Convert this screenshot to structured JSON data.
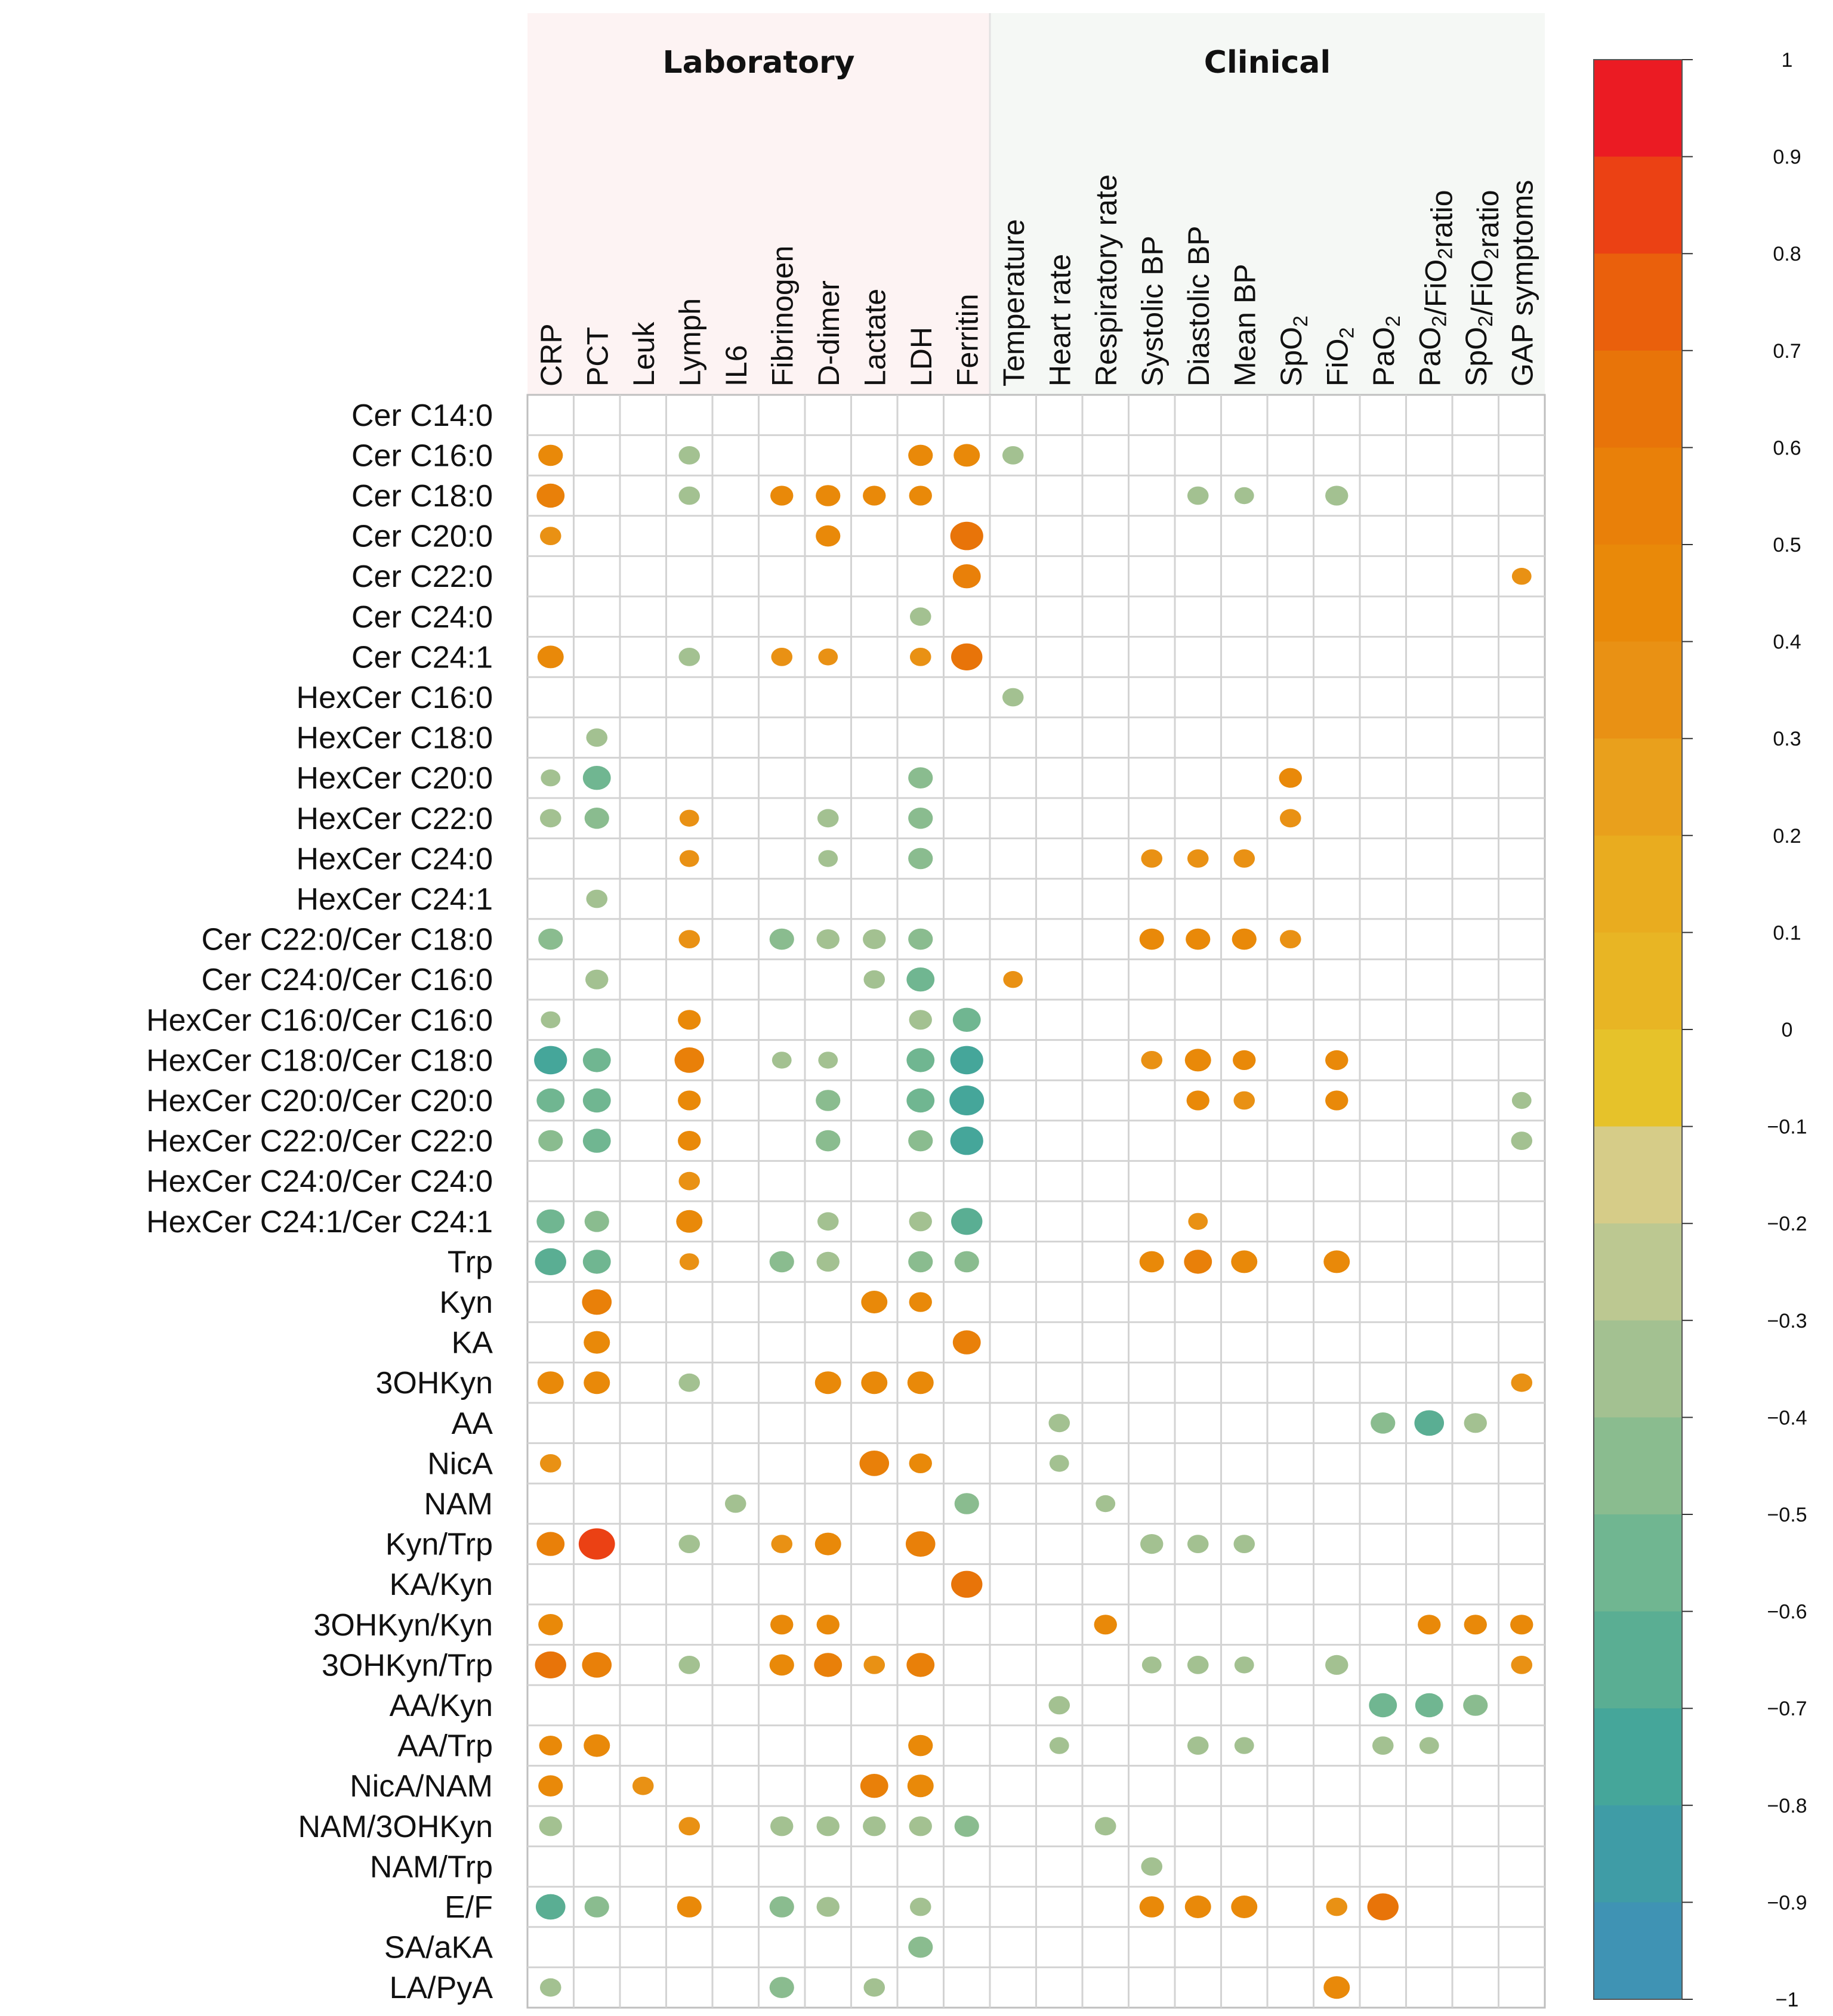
{
  "chart_data": {
    "type": "heatmap",
    "title": "",
    "groups": [
      {
        "name": "Laboratory",
        "color": "#fdf3f3"
      },
      {
        "name": "Clinical",
        "color": "#f5f8f5"
      }
    ],
    "columns": [
      "CRP",
      "PCT",
      "Leuk",
      "Lymph",
      "IL6",
      "Fibrinogen",
      "D-dimer",
      "Lactate",
      "LDH",
      "Ferritin",
      "Temperature",
      "Heart rate",
      "Respiratory rate",
      "Systolic BP",
      "Diastolic BP",
      "Mean BP",
      "SpO₂",
      "FiO₂",
      "PaO₂",
      "PaO₂/FiO₂ratio",
      "SpO₂/FiO₂ratio",
      "GAP symptoms"
    ],
    "column_groups": [
      0,
      0,
      0,
      0,
      0,
      0,
      0,
      0,
      0,
      0,
      1,
      1,
      1,
      1,
      1,
      1,
      1,
      1,
      1,
      1,
      1,
      1
    ],
    "rows": [
      "Cer C14:0",
      "Cer C16:0",
      "Cer C18:0",
      "Cer C20:0",
      "Cer C22:0",
      "Cer C24:0",
      "Cer C24:1",
      "HexCer C16:0",
      "HexCer C18:0",
      "HexCer C20:0",
      "HexCer C22:0",
      "HexCer C24:0",
      "HexCer C24:1",
      "Cer C22:0/Cer C18:0",
      "Cer C24:0/Cer C16:0",
      "HexCer C16:0/Cer C16:0",
      "HexCer C18:0/Cer C18:0",
      "HexCer C20:0/Cer C20:0",
      "HexCer C22:0/Cer C22:0",
      "HexCer C24:0/Cer C24:0",
      "HexCer C24:1/Cer C24:1",
      "Trp",
      "Kyn",
      "KA",
      "3OHKyn",
      "AA",
      "NicA",
      "NAM",
      "Kyn/Trp",
      "KA/Kyn",
      "3OHKyn/Kyn",
      "3OHKyn/Trp",
      "AA/Kyn",
      "AA/Trp",
      "NicA/NAM",
      "NAM/3OHKyn",
      "NAM/Trp",
      "E/F",
      "SA/aKA",
      "LA/PyA"
    ],
    "values": [
      [
        0,
        0,
        0,
        0,
        0,
        0,
        0,
        0,
        0,
        0,
        0,
        0,
        0,
        0,
        0,
        0,
        0,
        0,
        0,
        0,
        0,
        0
      ],
      [
        0.45,
        0,
        0,
        -0.35,
        0,
        0,
        0,
        0,
        0.45,
        0.5,
        -0.35,
        0,
        0,
        0,
        0,
        0,
        0,
        0,
        0,
        0,
        0,
        0
      ],
      [
        0.55,
        0,
        0,
        -0.35,
        0,
        0.4,
        0.45,
        0.4,
        0.4,
        0,
        0,
        0,
        0,
        0,
        -0.35,
        -0.3,
        0,
        -0.4,
        0,
        0,
        0,
        0
      ],
      [
        0.35,
        0,
        0,
        0,
        0,
        0,
        0.45,
        0,
        0,
        0.7,
        0,
        0,
        0,
        0,
        0,
        0,
        0,
        0,
        0,
        0,
        0,
        0
      ],
      [
        0,
        0,
        0,
        0,
        0,
        0,
        0,
        0,
        0,
        0.55,
        0,
        0,
        0,
        0,
        0,
        0,
        0,
        0,
        0,
        0,
        0,
        0.3
      ],
      [
        0,
        0,
        0,
        0,
        0,
        0,
        0,
        0,
        -0.35,
        0,
        0,
        0,
        0,
        0,
        0,
        0,
        0,
        0,
        0,
        0,
        0,
        0
      ],
      [
        0.5,
        0,
        0,
        -0.35,
        0,
        0.35,
        0.3,
        0,
        0.35,
        0.65,
        0,
        0,
        0,
        0,
        0,
        0,
        0,
        0,
        0,
        0,
        0,
        0
      ],
      [
        0,
        0,
        0,
        0,
        0,
        0,
        0,
        0,
        0,
        0,
        -0.35,
        0,
        0,
        0,
        0,
        0,
        0,
        0,
        0,
        0,
        0,
        0
      ],
      [
        0,
        -0.35,
        0,
        0,
        0,
        0,
        0,
        0,
        0,
        0,
        0,
        0,
        0,
        0,
        0,
        0,
        0,
        0,
        0,
        0,
        0,
        0
      ],
      [
        -0.3,
        -0.55,
        0,
        0,
        0,
        0,
        0,
        0,
        -0.45,
        0,
        0,
        0,
        0,
        0,
        0,
        0,
        0.4,
        0,
        0,
        0,
        0,
        0
      ],
      [
        -0.35,
        -0.45,
        0,
        0.3,
        0,
        0,
        -0.35,
        0,
        -0.45,
        0,
        0,
        0,
        0,
        0,
        0,
        0,
        0.35,
        0,
        0,
        0,
        0,
        0
      ],
      [
        0,
        0,
        0,
        0.3,
        0,
        0,
        -0.3,
        0,
        -0.45,
        0,
        0,
        0,
        0,
        0.35,
        0.35,
        0.35,
        0,
        0,
        0,
        0,
        0,
        0
      ],
      [
        0,
        -0.35,
        0,
        0,
        0,
        0,
        0,
        0,
        0,
        0,
        0,
        0,
        0,
        0,
        0,
        0,
        0,
        0,
        0,
        0,
        0,
        0
      ],
      [
        -0.45,
        0,
        0,
        0.35,
        0,
        -0.45,
        -0.4,
        -0.4,
        -0.45,
        0,
        0,
        0,
        0,
        0.45,
        0.45,
        0.45,
        0.35,
        0,
        0,
        0,
        0,
        0
      ],
      [
        0,
        -0.4,
        0,
        0,
        0,
        0,
        0,
        -0.35,
        -0.55,
        0,
        0.3,
        0,
        0,
        0,
        0,
        0,
        0,
        0,
        0,
        0,
        0,
        0
      ],
      [
        -0.3,
        0,
        0,
        0.4,
        0,
        0,
        0,
        0,
        -0.4,
        -0.55,
        0,
        0,
        0,
        0,
        0,
        0,
        0,
        0,
        0,
        0,
        0,
        0
      ],
      [
        -0.7,
        -0.55,
        0,
        0.6,
        0,
        -0.3,
        -0.3,
        0,
        -0.55,
        -0.7,
        0,
        0,
        0,
        0.35,
        0.5,
        0.4,
        0,
        0.4,
        0,
        0,
        0,
        0
      ],
      [
        -0.55,
        -0.55,
        0,
        0.4,
        0,
        0,
        -0.45,
        0,
        -0.55,
        -0.75,
        0,
        0,
        0,
        0,
        0.4,
        0.35,
        0,
        0.4,
        0,
        0,
        0,
        -0.3
      ],
      [
        -0.45,
        -0.55,
        0,
        0.4,
        0,
        0,
        -0.45,
        0,
        -0.45,
        -0.7,
        0,
        0,
        0,
        0,
        0,
        0,
        0,
        0,
        0,
        0,
        0,
        -0.35
      ],
      [
        0,
        0,
        0,
        0.35,
        0,
        0,
        0,
        0,
        0,
        0,
        0,
        0,
        0,
        0,
        0,
        0,
        0,
        0,
        0,
        0,
        0,
        0
      ],
      [
        -0.55,
        -0.45,
        0,
        0.5,
        0,
        0,
        -0.35,
        0,
        -0.4,
        -0.65,
        0,
        0,
        0,
        0,
        0.3,
        0,
        0,
        0,
        0,
        0,
        0,
        0
      ],
      [
        -0.65,
        -0.55,
        0,
        0.3,
        0,
        -0.45,
        -0.4,
        0,
        -0.45,
        -0.45,
        0,
        0,
        0,
        0.45,
        0.55,
        0.5,
        0,
        0.5,
        0,
        0,
        0,
        0
      ],
      [
        0,
        0.6,
        0,
        0,
        0,
        0,
        0,
        0.5,
        0.4,
        0,
        0,
        0,
        0,
        0,
        0,
        0,
        0,
        0,
        0,
        0,
        0,
        0
      ],
      [
        0,
        0.5,
        0,
        0,
        0,
        0,
        0,
        0,
        0,
        0.55,
        0,
        0,
        0,
        0,
        0,
        0,
        0,
        0,
        0,
        0,
        0,
        0
      ],
      [
        0.5,
        0.5,
        0,
        -0.35,
        0,
        0,
        0.5,
        0.5,
        0.5,
        0,
        0,
        0,
        0,
        0,
        0,
        0,
        0,
        0,
        0,
        0,
        0,
        0.35
      ],
      [
        0,
        0,
        0,
        0,
        0,
        0,
        0,
        0,
        0,
        0,
        0,
        -0.35,
        0,
        0,
        0,
        0,
        0,
        0,
        -0.45,
        -0.6,
        -0.4,
        0
      ],
      [
        0.35,
        0,
        0,
        0,
        0,
        0,
        0,
        0.6,
        0.4,
        0,
        0,
        -0.3,
        0,
        0,
        0,
        0,
        0,
        0,
        0,
        0,
        0,
        0
      ],
      [
        0,
        0,
        0,
        0,
        -0.35,
        0,
        0,
        0,
        0,
        -0.45,
        0,
        0,
        -0.3,
        0,
        0,
        0,
        0,
        0,
        0,
        0,
        0,
        0
      ],
      [
        0.55,
        0.8,
        0,
        -0.35,
        0,
        0.35,
        0.5,
        0,
        0.6,
        0,
        0,
        0,
        0,
        -0.4,
        -0.35,
        -0.35,
        0,
        0,
        0,
        0,
        0,
        0
      ],
      [
        0,
        0,
        0,
        0,
        0,
        0,
        0,
        0,
        0,
        0.65,
        0,
        0,
        0,
        0,
        0,
        0,
        0,
        0,
        0,
        0,
        0,
        0
      ],
      [
        0.45,
        0,
        0,
        0,
        0,
        0.4,
        0.4,
        0,
        0,
        0,
        0,
        0,
        0.4,
        0,
        0,
        0,
        0,
        0,
        0,
        0.4,
        0.4,
        0.4
      ],
      [
        0.65,
        0.6,
        0,
        -0.35,
        0,
        0.45,
        0.55,
        0.35,
        0.55,
        0,
        0,
        0,
        0,
        -0.3,
        -0.35,
        -0.3,
        0,
        -0.4,
        0,
        0,
        0,
        0.35
      ],
      [
        0,
        0,
        0,
        0,
        0,
        0,
        0,
        0,
        0,
        0,
        0,
        -0.35,
        0,
        0,
        0,
        0,
        0,
        0,
        -0.55,
        -0.55,
        -0.45,
        0
      ],
      [
        0.4,
        0.5,
        0,
        0,
        0,
        0,
        0,
        0,
        0.45,
        0,
        0,
        -0.3,
        0,
        0,
        -0.35,
        -0.3,
        0,
        0,
        -0.35,
        -0.3,
        0,
        0
      ],
      [
        0.45,
        0,
        0.35,
        0,
        0,
        0,
        0,
        0.55,
        0.5,
        0,
        0,
        0,
        0,
        0,
        0,
        0,
        0,
        0,
        0,
        0,
        0,
        0
      ],
      [
        -0.4,
        0,
        0,
        0.35,
        0,
        -0.4,
        -0.4,
        -0.4,
        -0.4,
        -0.45,
        0,
        0,
        -0.35,
        0,
        0,
        0,
        0,
        0,
        0,
        0,
        0,
        0
      ],
      [
        0,
        0,
        0,
        0,
        0,
        0,
        0,
        0,
        0,
        0,
        0,
        0,
        0,
        -0.35,
        0,
        0,
        0,
        0,
        0,
        0,
        0,
        0
      ],
      [
        -0.6,
        -0.45,
        0,
        0.45,
        0,
        -0.45,
        -0.4,
        0,
        -0.35,
        0,
        0,
        0,
        0,
        0.45,
        0.5,
        0.5,
        0,
        0.35,
        0.65,
        0,
        0,
        0
      ],
      [
        0,
        0,
        0,
        0,
        0,
        0,
        0,
        0,
        -0.45,
        0,
        0,
        0,
        0,
        0,
        0,
        0,
        0,
        0,
        0,
        0,
        0,
        0
      ],
      [
        -0.35,
        0,
        0,
        0,
        0,
        -0.45,
        0,
        -0.35,
        0,
        0,
        0,
        0,
        0,
        0,
        0,
        0,
        0,
        0.5,
        0,
        0,
        0,
        0
      ]
    ],
    "colorbar": {
      "min": -1,
      "max": 1,
      "ticks": [
        "1",
        "0.9",
        "0.8",
        "0.7",
        "0.6",
        "0.5",
        "0.4",
        "0.3",
        "0.2",
        "0.1",
        "0",
        "−0.1",
        "−0.2",
        "−0.3",
        "−0.4",
        "−0.5",
        "−0.6",
        "−0.7",
        "−0.8",
        "−0.9",
        "−1"
      ],
      "colors": [
        "#e8f01f",
        "#f0d623",
        "#eb1b23",
        "#eb4114",
        "#ea600c",
        "#e87409",
        "#e98009",
        "#e98909",
        "#e99114",
        "#e9a01c",
        "#e9ac1f",
        "#e8b524",
        "#e6c22a",
        "#d6cc88",
        "#bcc891",
        "#a3c191",
        "#8abc8f",
        "#70b691",
        "#5aae93",
        "#45a69a",
        "#3f9ca6",
        "#3f93b4"
      ]
    }
  }
}
